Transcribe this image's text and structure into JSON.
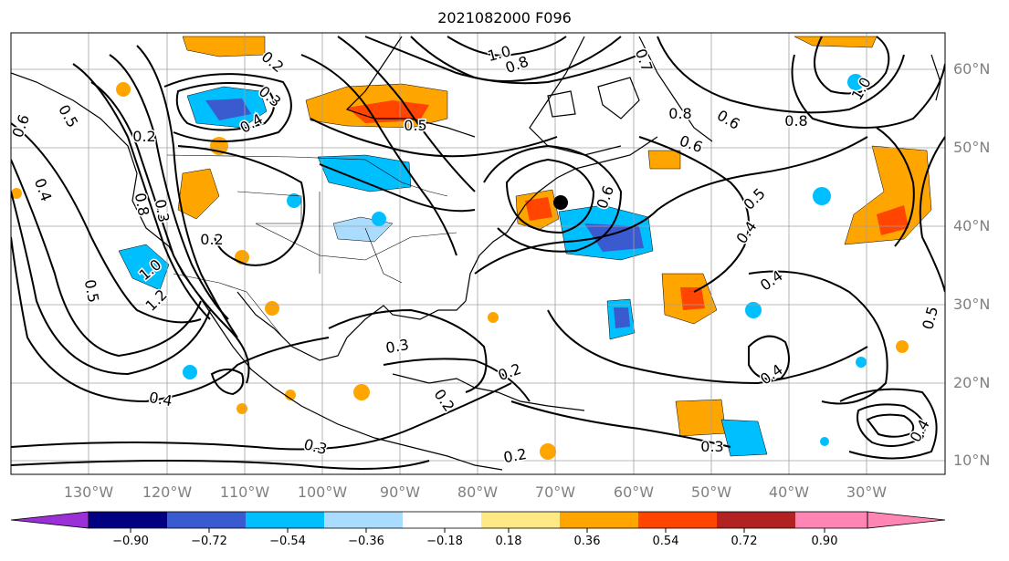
{
  "title": "2021082000 F096",
  "map": {
    "lat_labels": [
      "60°N",
      "50°N",
      "40°N",
      "30°N",
      "20°N",
      "10°N"
    ],
    "lon_labels": [
      "130°W",
      "120°W",
      "110°W",
      "100°W",
      "90°W",
      "80°W",
      "70°W",
      "60°W",
      "50°W",
      "40°W",
      "30°W"
    ],
    "contour_labels": [
      "0.6",
      "0.5",
      "0.4",
      "0.2",
      "0.3",
      "0.4",
      "0.2",
      "0.5",
      "1.0",
      "0.8",
      "0.7",
      "0.8",
      "0.6",
      "0.8",
      "1.0",
      "0.6",
      "0.6",
      "0.5",
      "0.4",
      "0.4",
      "0.4",
      "0.5",
      "0.3",
      "0.3",
      "0.2",
      "0.2",
      "0.3",
      "0.4",
      "0.3",
      "0.2",
      "0.8",
      "1.0",
      "1.2",
      "0.2",
      "0.4",
      "0.5"
    ],
    "storm_marker": "filled-black-circle"
  },
  "colorbar": {
    "tick_labels": [
      "−0.90",
      "−0.72",
      "−0.54",
      "−0.36",
      "−0.18",
      "0.18",
      "0.36",
      "0.54",
      "0.72",
      "0.90"
    ],
    "colors": [
      "#9b30d9",
      "#000080",
      "#3a5bcf",
      "#00bfff",
      "#aadcff",
      "#ffffff",
      "#ffe985",
      "#ffa500",
      "#ff4500",
      "#b22222",
      "#ff85b4"
    ]
  }
}
